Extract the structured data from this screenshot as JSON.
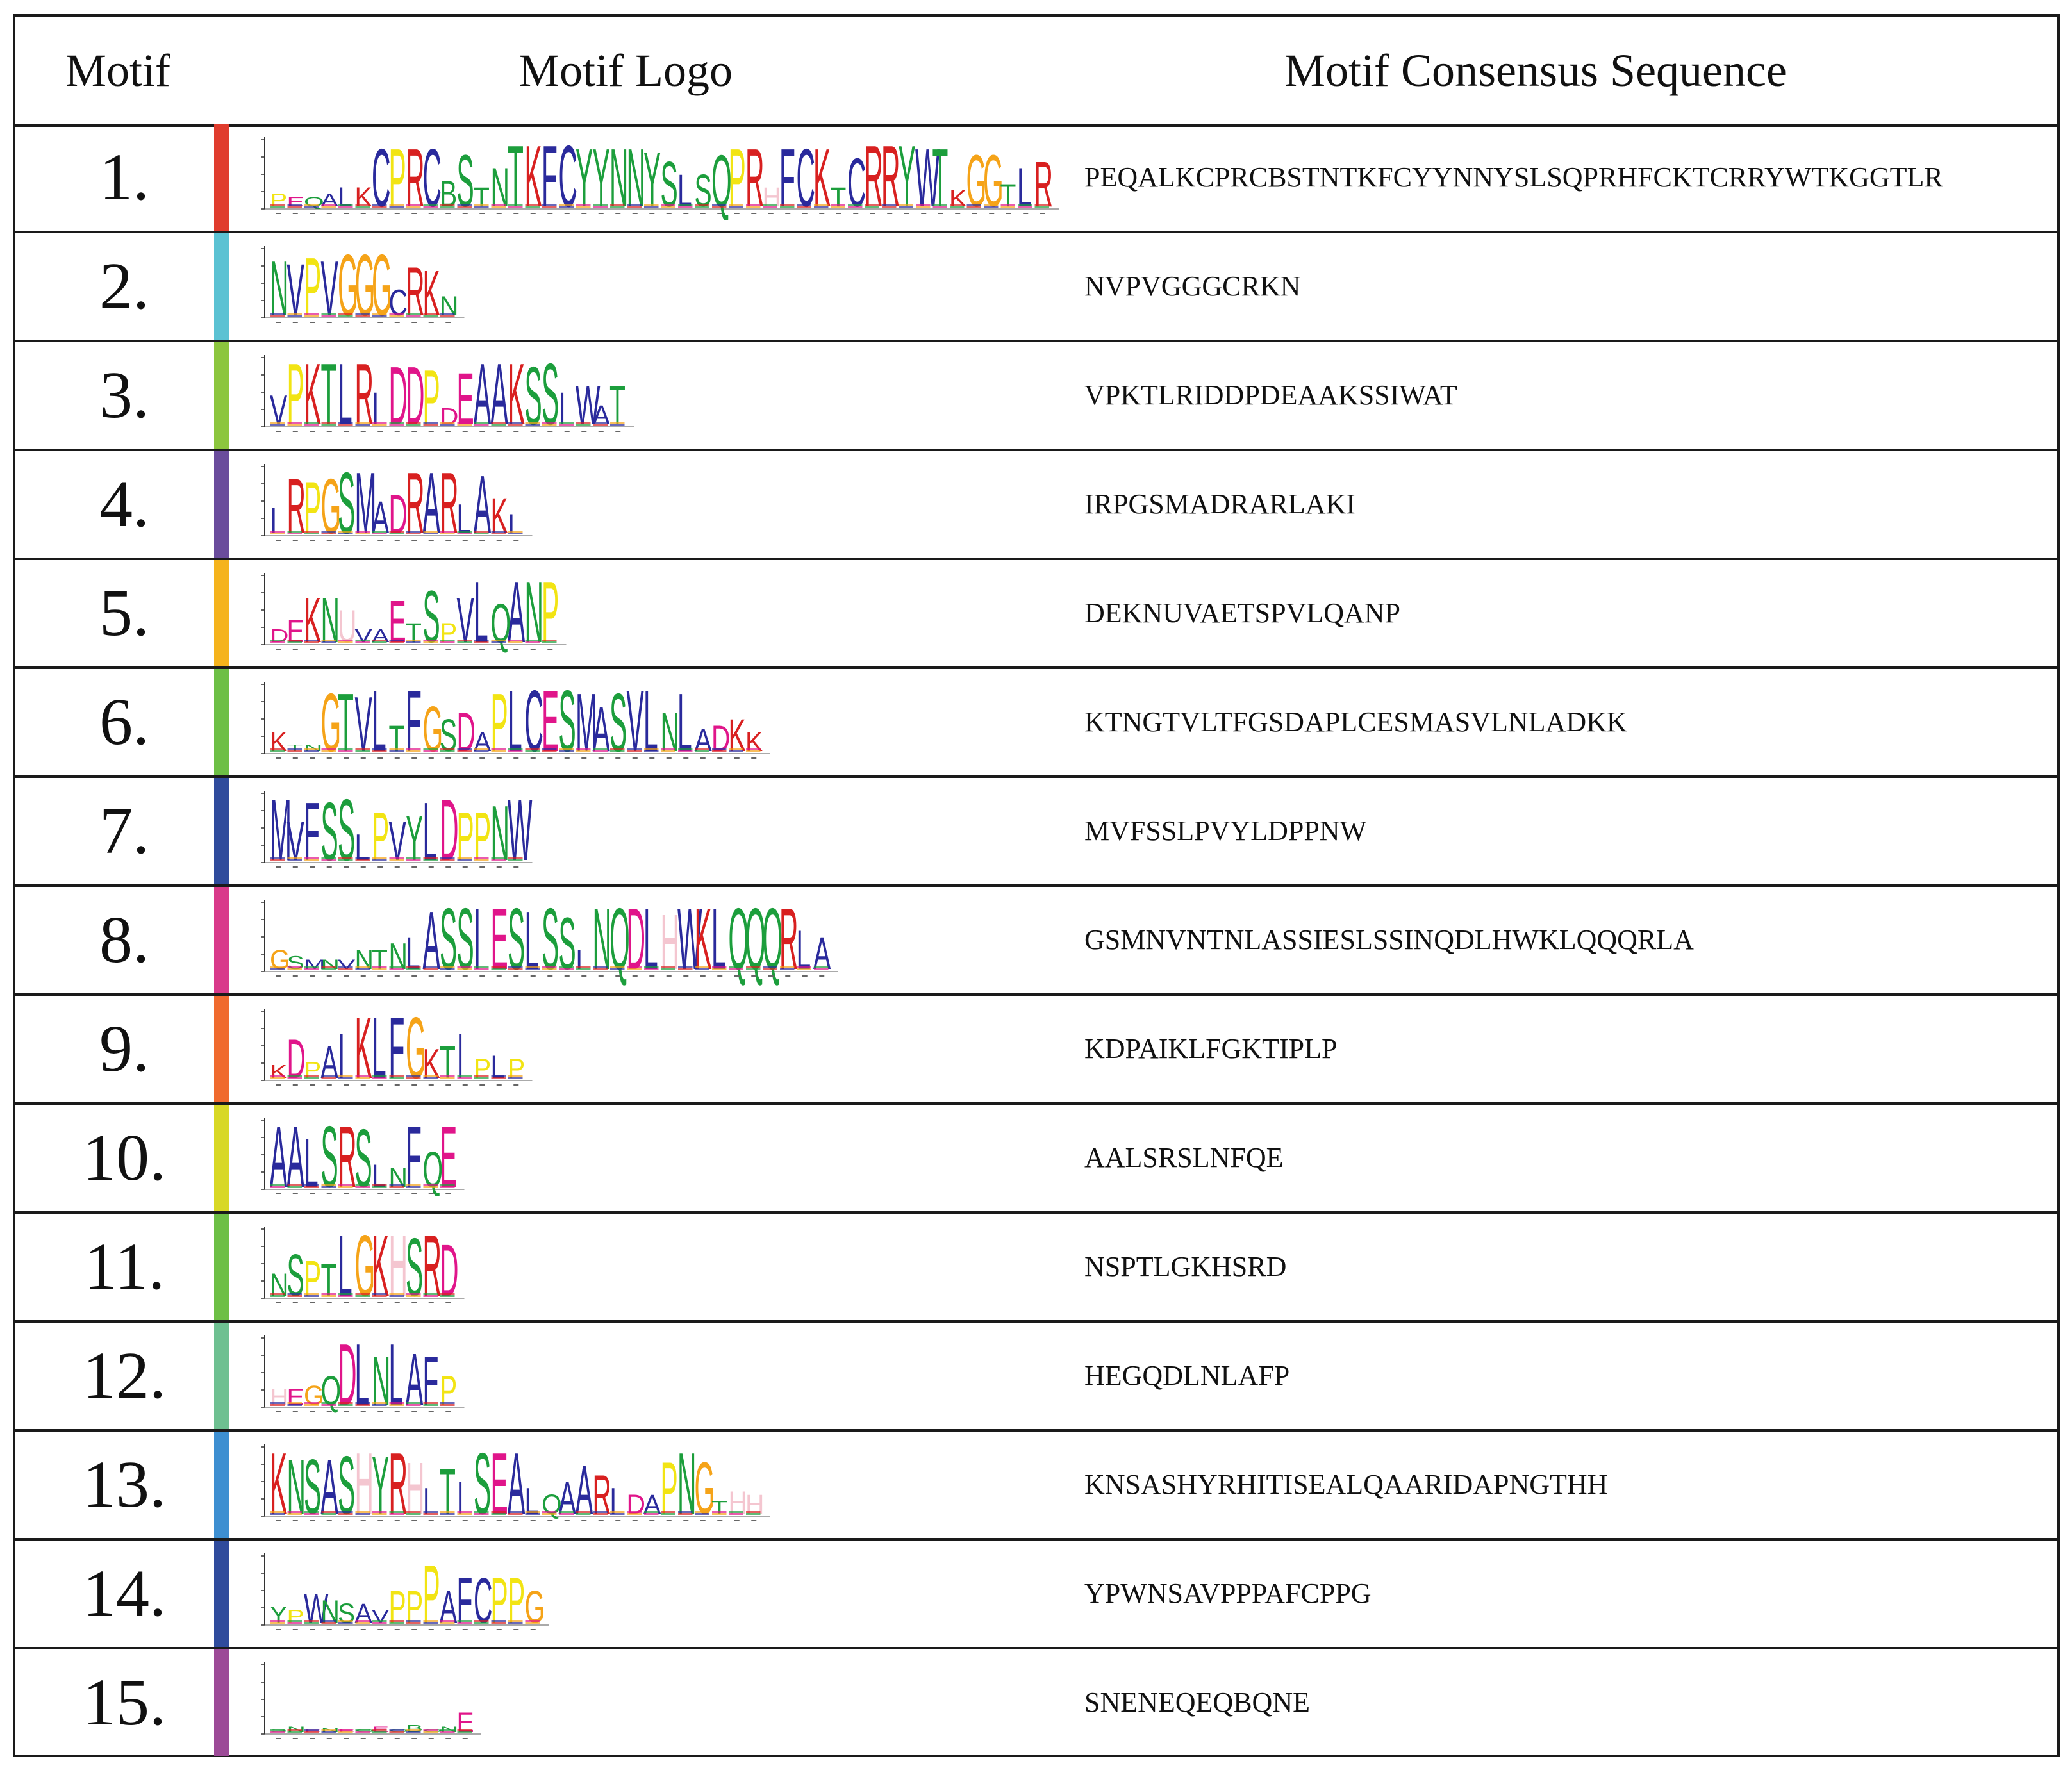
{
  "header": {
    "motif": "Motif",
    "logo": "Motif Logo",
    "consensus": "Motif Consensus Sequence"
  },
  "colors": {
    "A": "#2a2a9c",
    "V": "#2a2a9c",
    "L": "#2a2a9c",
    "I": "#2a2a9c",
    "M": "#2a2a9c",
    "W": "#2a2a9c",
    "F": "#2a2a9c",
    "C": "#2a2a9c",
    "K": "#d82020",
    "R": "#d82020",
    "D": "#e0158a",
    "E": "#e0158a",
    "S": "#1c9e3c",
    "T": "#1c9e3c",
    "N": "#1c9e3c",
    "Q": "#1c9e3c",
    "Y": "#1c9e3c",
    "G": "#f5a318",
    "P": "#f2e413",
    "H": "#f4c6d0",
    "B": "#1c9e3c",
    "U": "#f4c6d0"
  },
  "motifs": [
    {
      "number": "1.",
      "color": "#e03c2e",
      "sequence": "PEQALKCPRCBSTNTKFCYYNNYSLSQPRHFCKTCRRYWTKGGTLR",
      "logo": [
        0.2,
        0.15,
        0.15,
        0.2,
        0.3,
        0.3,
        0.9,
        0.9,
        0.9,
        0.9,
        0.4,
        0.8,
        0.3,
        0.6,
        0.95,
        0.95,
        0.95,
        0.95,
        0.9,
        0.9,
        0.9,
        0.9,
        0.85,
        0.7,
        0.5,
        0.5,
        0.8,
        0.9,
        0.9,
        0.3,
        0.9,
        0.9,
        0.9,
        0.3,
        0.75,
        0.95,
        0.95,
        0.95,
        0.9,
        0.9,
        0.25,
        0.8,
        0.8,
        0.35,
        0.6,
        0.7
      ]
    },
    {
      "number": "2.",
      "color": "#5bc2d3",
      "sequence": "NVPVGGGCRKN",
      "logo": [
        0.85,
        0.8,
        0.9,
        0.85,
        0.95,
        0.95,
        0.95,
        0.4,
        0.75,
        0.7,
        0.3
      ]
    },
    {
      "number": "3.",
      "color": "#8cc63e",
      "sequence": "VPKTLRIDDPDEAAKSSIWAT",
      "logo": [
        0.45,
        0.95,
        0.95,
        0.95,
        0.95,
        0.95,
        0.5,
        0.9,
        0.9,
        0.85,
        0.25,
        0.8,
        0.95,
        0.95,
        0.95,
        0.9,
        0.95,
        0.5,
        0.6,
        0.3,
        0.6
      ]
    },
    {
      "number": "4.",
      "color": "#6a4c9c",
      "sequence": "IRPGSMADRARLAKI",
      "logo": [
        0.4,
        0.85,
        0.8,
        0.85,
        0.95,
        0.95,
        0.5,
        0.6,
        0.95,
        0.95,
        0.95,
        0.45,
        0.9,
        0.55,
        0.3
      ]
    },
    {
      "number": "5.",
      "color": "#f5b31c",
      "sequence": "DEKNUVAETSPVLQANP",
      "logo": [
        0.2,
        0.35,
        0.7,
        0.7,
        0.5,
        0.2,
        0.2,
        0.65,
        0.3,
        0.8,
        0.3,
        0.7,
        0.95,
        0.6,
        0.95,
        0.95,
        0.95
      ]
    },
    {
      "number": "6.",
      "color": "#6dbf45",
      "sequence": "KTNGTVLTFGSDAPLCESMASVLNLADKK",
      "logo": [
        0.3,
        0.1,
        0.1,
        0.9,
        0.9,
        0.85,
        0.95,
        0.4,
        0.95,
        0.7,
        0.5,
        0.6,
        0.3,
        0.9,
        0.95,
        0.95,
        0.95,
        0.95,
        0.9,
        0.7,
        0.9,
        0.95,
        0.95,
        0.6,
        0.9,
        0.35,
        0.4,
        0.5,
        0.3
      ]
    },
    {
      "number": "7.",
      "color": "#2f4b9c",
      "sequence": "MVFSSLPVYLDPPNW",
      "logo": [
        0.95,
        0.6,
        0.9,
        0.9,
        0.95,
        0.4,
        0.75,
        0.6,
        0.7,
        0.9,
        0.95,
        0.75,
        0.75,
        0.85,
        0.95
      ]
    },
    {
      "number": "8.",
      "color": "#d93a8a",
      "sequence": "GSMNVNTNLASSIESLSSINQDLHWKLQQQRLA",
      "logo": [
        0.3,
        0.2,
        0.15,
        0.15,
        0.15,
        0.3,
        0.3,
        0.4,
        0.5,
        0.9,
        0.95,
        0.95,
        0.95,
        0.95,
        0.95,
        0.9,
        0.95,
        0.8,
        0.3,
        0.95,
        0.95,
        0.95,
        0.95,
        0.85,
        0.95,
        0.95,
        0.95,
        0.95,
        0.95,
        0.95,
        0.95,
        0.6,
        0.5
      ]
    },
    {
      "number": "9.",
      "color": "#f06a2e",
      "sequence": "KDPAIKLFGKTIPLP",
      "logo": [
        0.2,
        0.6,
        0.25,
        0.5,
        0.7,
        0.95,
        0.95,
        0.95,
        0.95,
        0.45,
        0.5,
        0.7,
        0.3,
        0.35,
        0.3
      ]
    },
    {
      "number": "10.",
      "color": "#d8d826",
      "sequence": "AALSRSLNFQE",
      "logo": [
        0.95,
        0.95,
        0.75,
        0.95,
        0.95,
        0.9,
        0.35,
        0.3,
        0.95,
        0.55,
        0.95
      ]
    },
    {
      "number": "11.",
      "color": "#6dbf45",
      "sequence": "NSPTLGKHSRD",
      "logo": [
        0.35,
        0.65,
        0.55,
        0.5,
        0.95,
        0.95,
        0.95,
        0.95,
        0.9,
        0.95,
        0.8
      ]
    },
    {
      "number": "12.",
      "color": "#6ec091",
      "sequence": "HEGQDLNLAFP",
      "logo": [
        0.25,
        0.25,
        0.3,
        0.45,
        0.95,
        0.95,
        0.75,
        0.95,
        0.8,
        0.75,
        0.45
      ]
    },
    {
      "number": "13.",
      "color": "#3d8fd1",
      "sequence": "KNSASHYRHITISEALQAARIDAPNGTHH",
      "logo": [
        0.95,
        0.85,
        0.85,
        0.85,
        0.9,
        0.95,
        0.9,
        0.95,
        0.8,
        0.4,
        0.7,
        0.5,
        0.95,
        0.95,
        0.95,
        0.4,
        0.3,
        0.5,
        0.75,
        0.6,
        0.4,
        0.3,
        0.3,
        0.8,
        0.95,
        0.8,
        0.2,
        0.35,
        0.3
      ]
    },
    {
      "number": "14.",
      "color": "#2f4b9c",
      "sequence": "YPWNSAVPPPAFCPPG",
      "logo": [
        0.25,
        0.2,
        0.45,
        0.35,
        0.3,
        0.3,
        0.2,
        0.5,
        0.5,
        0.9,
        0.5,
        0.7,
        0.7,
        0.7,
        0.7,
        0.5
      ]
    },
    {
      "number": "15.",
      "color": "#9c4a97",
      "sequence": "SNENEQEQBQNE",
      "logo": [
        0.03,
        0.08,
        0.03,
        0.05,
        0.04,
        0.03,
        0.08,
        0.03,
        0.1,
        0.03,
        0.08,
        0.3
      ]
    }
  ]
}
